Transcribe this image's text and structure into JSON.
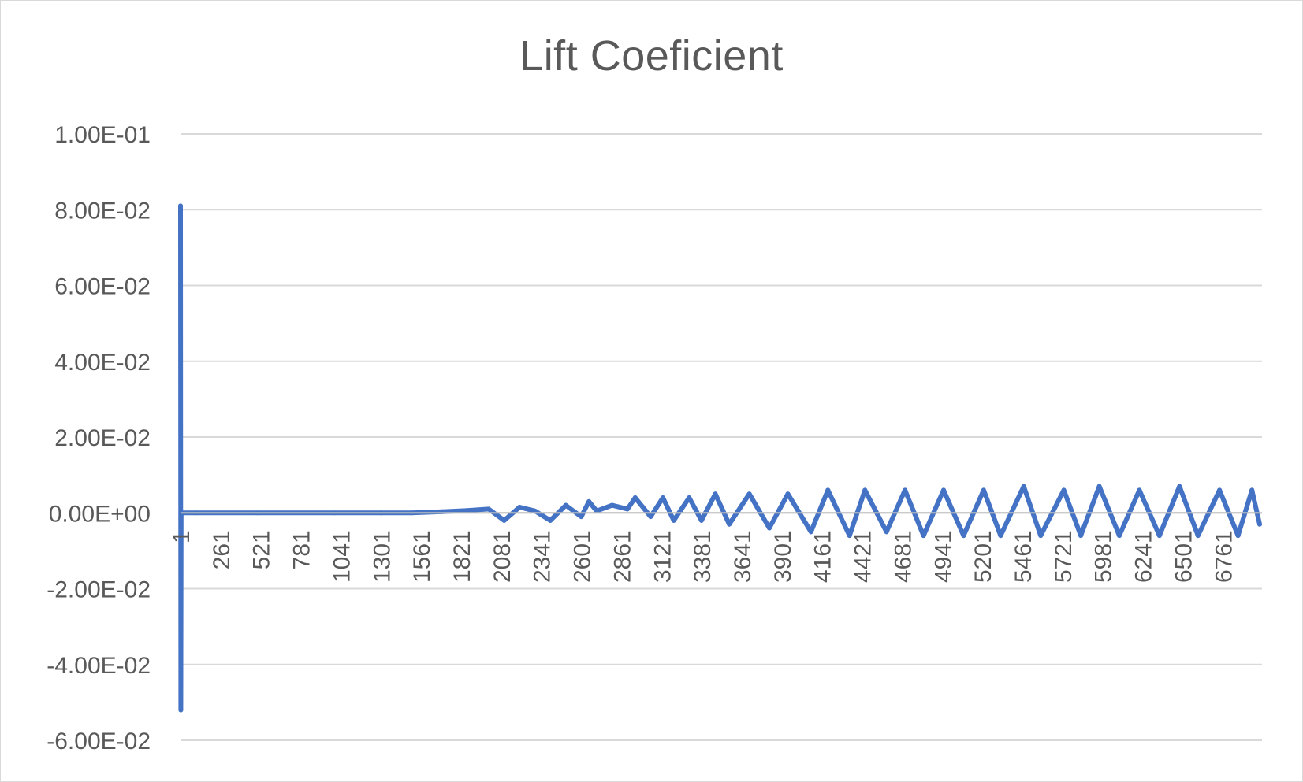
{
  "chart_data": {
    "type": "line",
    "title": "Lift Coeficient",
    "xlabel": "",
    "ylabel": "",
    "x_range": [
      1,
      7000
    ],
    "ylim": [
      -0.06,
      0.1
    ],
    "y_ticks": [
      0.1,
      0.08,
      0.06,
      0.04,
      0.02,
      0,
      -0.02,
      -0.04,
      -0.06
    ],
    "y_tick_labels": [
      "1.00E-01",
      "8.00E-02",
      "6.00E-02",
      "4.00E-02",
      "2.00E-02",
      "0.00E+00",
      "-2.00E-02",
      "-4.00E-02",
      "-6.00E-02"
    ],
    "x_tick_labels": [
      "1",
      "261",
      "521",
      "781",
      "1041",
      "1301",
      "1561",
      "1821",
      "2081",
      "2341",
      "2601",
      "2861",
      "3121",
      "3381",
      "3641",
      "3901",
      "4161",
      "4421",
      "4681",
      "4941",
      "5201",
      "5461",
      "5721",
      "5981",
      "6241",
      "6501",
      "6761"
    ],
    "grid": true,
    "legend": "none",
    "series_color": "#4472c4",
    "series": [
      {
        "x": [
          1,
          3,
          5,
          10,
          100,
          500,
          1000,
          1300,
          1500,
          1700,
          1850,
          2000,
          2100,
          2200,
          2300,
          2400,
          2500,
          2600,
          2650,
          2700,
          2800,
          2900,
          2950,
          3050,
          3130,
          3200,
          3300,
          3380,
          3470,
          3560,
          3690,
          3820,
          3940,
          4090,
          4200,
          4340,
          4440,
          4580,
          4700,
          4820,
          4950,
          5080,
          5210,
          5320,
          5470,
          5580,
          5730,
          5840,
          5960,
          6090,
          6220,
          6350,
          6480,
          6600,
          6740,
          6860,
          6950,
          7000
        ],
        "values": [
          0.081,
          -0.052,
          -0.0005,
          0.0,
          0.0,
          0.0,
          0.0,
          0.0,
          0.0,
          0.0003,
          0.0006,
          0.001,
          -0.002,
          0.0015,
          0.0005,
          -0.002,
          0.002,
          -0.001,
          0.003,
          0.0005,
          0.002,
          0.001,
          0.004,
          -0.001,
          0.004,
          -0.002,
          0.004,
          -0.002,
          0.005,
          -0.003,
          0.005,
          -0.004,
          0.005,
          -0.005,
          0.006,
          -0.006,
          0.006,
          -0.005,
          0.006,
          -0.006,
          0.006,
          -0.006,
          0.006,
          -0.006,
          0.007,
          -0.006,
          0.006,
          -0.006,
          0.007,
          -0.006,
          0.006,
          -0.006,
          0.007,
          -0.006,
          0.006,
          -0.006,
          0.006,
          -0.003
        ]
      }
    ]
  }
}
